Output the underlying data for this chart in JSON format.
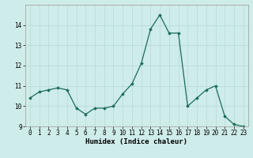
{
  "x": [
    0,
    1,
    2,
    3,
    4,
    5,
    6,
    7,
    8,
    9,
    10,
    11,
    12,
    13,
    14,
    15,
    16,
    17,
    18,
    19,
    20,
    21,
    22,
    23
  ],
  "y": [
    10.4,
    10.7,
    10.8,
    10.9,
    10.8,
    9.9,
    9.6,
    9.9,
    9.9,
    10.0,
    10.6,
    11.1,
    12.1,
    13.8,
    14.5,
    13.6,
    13.6,
    10.0,
    10.4,
    10.8,
    11.0,
    9.5,
    9.1,
    9.0
  ],
  "xlabel": "Humidex (Indice chaleur)",
  "ylim": [
    9,
    15
  ],
  "yticks": [
    9,
    10,
    11,
    12,
    13,
    14
  ],
  "xticks": [
    0,
    1,
    2,
    3,
    4,
    5,
    6,
    7,
    8,
    9,
    10,
    11,
    12,
    13,
    14,
    15,
    16,
    17,
    18,
    19,
    20,
    21,
    22,
    23
  ],
  "line_color": "#1a6b5a",
  "marker": "D",
  "marker_size": 1.8,
  "bg_color": "#ceecea",
  "grid_color": "#b8d8d6",
  "xlabel_fontsize": 6.5,
  "tick_fontsize": 5.5
}
